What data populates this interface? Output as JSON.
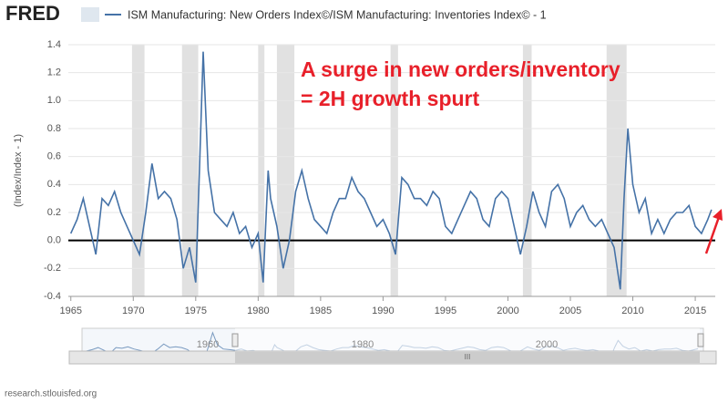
{
  "logo": "FRED",
  "footer": "research.stlouisfed.org",
  "navigator": {
    "labels": [
      "1960",
      "1980",
      "2000"
    ],
    "scroll_label": "III"
  },
  "chart_data": {
    "type": "line",
    "title": "ISM Manufacturing: New Orders Index©/ISM Manufacturing: Inventories Index© - 1",
    "ylabel": "(Index/Index - 1)",
    "annotations": [
      "A surge in new orders/inventory",
      "= 2H growth spurt"
    ],
    "annotation_color": "#e8202a",
    "recessions": [
      [
        1969.9,
        1970.9
      ],
      [
        1973.9,
        1975.2
      ],
      [
        1980.0,
        1980.5
      ],
      [
        1981.5,
        1982.9
      ],
      [
        1990.6,
        1991.2
      ],
      [
        2001.2,
        2001.9
      ],
      [
        2007.9,
        2009.5
      ]
    ],
    "recession_color": "#e1e1e1",
    "xlim": [
      1964.8,
      2016.6
    ],
    "xticks": [
      1965,
      1970,
      1975,
      1980,
      1985,
      1990,
      1995,
      2000,
      2005,
      2010,
      2015
    ],
    "ylim": [
      -0.4,
      1.4
    ],
    "yticks": [
      {
        "value": -0.4,
        "label": "-0.4"
      },
      {
        "value": -0.2,
        "label": "-0.2"
      },
      {
        "value": 0,
        "label": "0.0"
      },
      {
        "value": 0.2,
        "label": "0.2"
      },
      {
        "value": 0.4,
        "label": "0.4"
      },
      {
        "value": 0.6,
        "label": "0.6"
      },
      {
        "value": 0.8,
        "label": "0.8"
      },
      {
        "value": 1.0,
        "label": "1.0"
      },
      {
        "value": 1.2,
        "label": "1.2"
      },
      {
        "value": 1.4,
        "label": "1.4"
      }
    ],
    "grid": true,
    "x": [
      1965,
      1965.5,
      1966,
      1966.5,
      1967,
      1967.5,
      1968,
      1968.5,
      1969,
      1969.5,
      1970,
      1970.5,
      1971,
      1971.5,
      1972,
      1972.5,
      1973,
      1973.5,
      1974,
      1974.5,
      1975,
      1975.3,
      1975.6,
      1976,
      1976.5,
      1977,
      1977.5,
      1978,
      1978.5,
      1979,
      1979.5,
      1980,
      1980.4,
      1980.8,
      1981,
      1981.5,
      1982,
      1982.5,
      1983,
      1983.5,
      1984,
      1984.5,
      1985,
      1985.5,
      1986,
      1986.5,
      1987,
      1987.5,
      1988,
      1988.5,
      1989,
      1989.5,
      1990,
      1990.5,
      1991,
      1991.5,
      1992,
      1992.5,
      1993,
      1993.5,
      1994,
      1994.5,
      1995,
      1995.5,
      1996,
      1996.5,
      1997,
      1997.5,
      1998,
      1998.5,
      1999,
      1999.5,
      2000,
      2000.5,
      2001,
      2001.5,
      2002,
      2002.5,
      2003,
      2003.5,
      2004,
      2004.5,
      2005,
      2005.5,
      2006,
      2006.5,
      2007,
      2007.5,
      2008,
      2008.5,
      2009,
      2009.3,
      2009.6,
      2010,
      2010.5,
      2011,
      2011.5,
      2012,
      2012.5,
      2013,
      2013.5,
      2014,
      2014.5,
      2015,
      2015.5,
      2016,
      2016.3
    ],
    "series": [
      {
        "name": "ISM Manufacturing: New Orders Index©/ISM Manufacturing: Inventories Index© - 1",
        "color": "#4572a7",
        "values": [
          0.05,
          0.15,
          0.3,
          0.1,
          -0.1,
          0.3,
          0.25,
          0.35,
          0.2,
          0.1,
          0.0,
          -0.1,
          0.2,
          0.55,
          0.3,
          0.35,
          0.3,
          0.15,
          -0.2,
          -0.05,
          -0.3,
          0.5,
          1.35,
          0.5,
          0.2,
          0.15,
          0.1,
          0.2,
          0.05,
          0.1,
          -0.05,
          0.05,
          -0.3,
          0.5,
          0.3,
          0.1,
          -0.2,
          0.0,
          0.35,
          0.5,
          0.3,
          0.15,
          0.1,
          0.05,
          0.2,
          0.3,
          0.3,
          0.45,
          0.35,
          0.3,
          0.2,
          0.1,
          0.15,
          0.05,
          -0.1,
          0.45,
          0.4,
          0.3,
          0.3,
          0.25,
          0.35,
          0.3,
          0.1,
          0.05,
          0.15,
          0.25,
          0.35,
          0.3,
          0.15,
          0.1,
          0.3,
          0.35,
          0.3,
          0.1,
          -0.1,
          0.1,
          0.35,
          0.2,
          0.1,
          0.35,
          0.4,
          0.3,
          0.1,
          0.2,
          0.25,
          0.15,
          0.1,
          0.15,
          0.05,
          -0.05,
          -0.35,
          0.3,
          0.8,
          0.4,
          0.2,
          0.3,
          0.05,
          0.15,
          0.05,
          0.15,
          0.2,
          0.2,
          0.25,
          0.1,
          0.05,
          0.15,
          0.22
        ]
      }
    ]
  }
}
